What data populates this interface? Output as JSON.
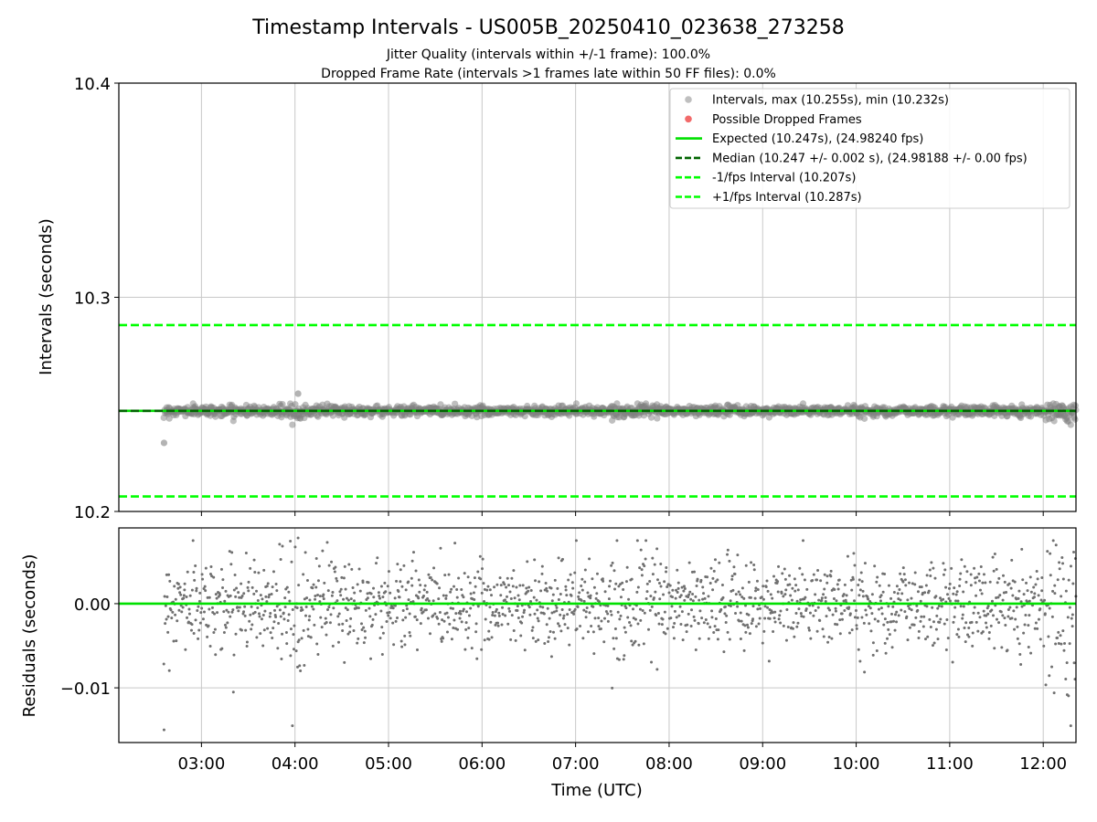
{
  "chart_data": [
    {
      "type": "scatter",
      "title": "Timestamp Intervals - US005B_20250410_023638_273258",
      "subtitle_1": "Jitter Quality (intervals within +/-1 frame): 100.0%",
      "subtitle_2": "Dropped Frame Rate (intervals >1 frames late within 50 FF files): 0.0%",
      "ylabel": "Intervals (seconds)",
      "ylim": [
        10.2,
        10.4
      ],
      "yticks": [
        "10.2",
        "10.3",
        "10.4"
      ],
      "xlim": [
        "02:07",
        "12:21"
      ],
      "grid": true,
      "legend_position": "top-right",
      "series": [
        {
          "name": "Intervals, max (10.255s), min (10.232s)",
          "kind": "scatter",
          "color": "#808080",
          "x_start": "02:36",
          "x_end": "12:21",
          "y_center": 10.247,
          "y_min": 10.232,
          "y_max": 10.255
        },
        {
          "name": "Possible Dropped Frames",
          "kind": "scatter",
          "color": "#f05050",
          "points": []
        },
        {
          "name": "Expected (10.247s), (24.98240 fps)",
          "kind": "hline",
          "y": 10.247,
          "color": "#00e000",
          "style": "solid"
        },
        {
          "name": "Median (10.247 +/- 0.002 s), (24.98188 +/- 0.00 fps)",
          "kind": "hline",
          "y": 10.247,
          "color": "#006400",
          "style": "dashed"
        },
        {
          "name": "-1/fps Interval (10.207s)",
          "kind": "hline",
          "y": 10.207,
          "color": "#00ff00",
          "style": "dashed"
        },
        {
          "name": "+1/fps Interval (10.287s)",
          "kind": "hline",
          "y": 10.287,
          "color": "#00ff00",
          "style": "dashed"
        }
      ]
    },
    {
      "type": "scatter",
      "xlabel": "Time (UTC)",
      "ylabel": "Residuals (seconds)",
      "ylim": [
        -0.0165,
        0.009
      ],
      "yticks": [
        "0.00",
        "−0.01"
      ],
      "xticks": [
        "03:00",
        "04:00",
        "05:00",
        "06:00",
        "07:00",
        "08:00",
        "09:00",
        "10:00",
        "11:00",
        "12:00"
      ],
      "xlim": [
        "02:07",
        "12:21"
      ],
      "grid": true,
      "series": [
        {
          "kind": "scatter",
          "color": "#707070",
          "x_start": "02:36",
          "x_end": "12:21",
          "y_center": 0.0,
          "y_min": -0.015,
          "y_max": 0.0078
        },
        {
          "kind": "hline",
          "y": 0.0,
          "color": "#00e000",
          "style": "solid"
        }
      ]
    }
  ]
}
